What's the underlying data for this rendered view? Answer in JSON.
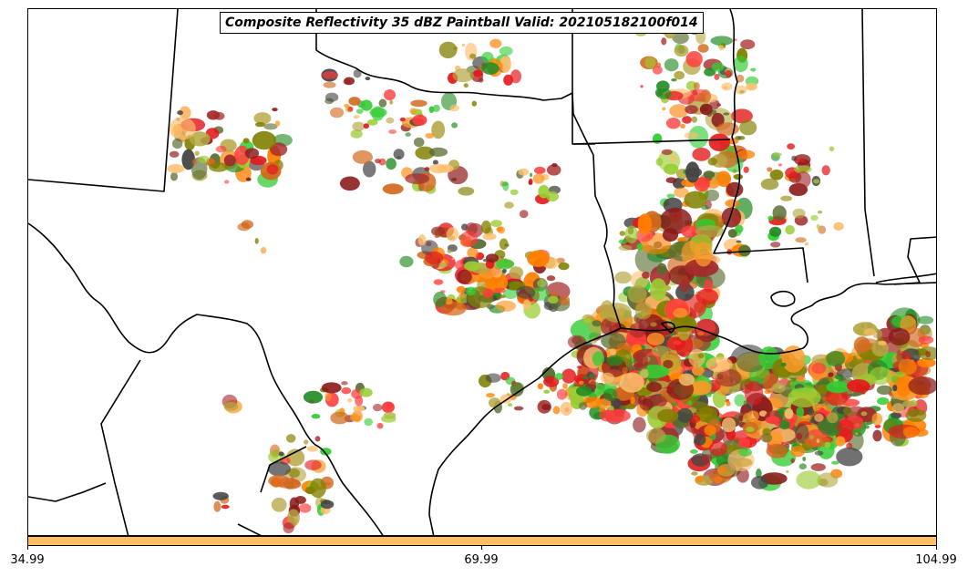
{
  "title": "Composite Reflectivity 35 dBZ Paintball Valid: 2021051821​00f014",
  "colorbar": {
    "color": "#FDBF61",
    "ticks": [
      "34.99",
      "69.99",
      "104.99"
    ]
  },
  "colors": {
    "border": "#000000",
    "paintball_palette": [
      "#FF3B3B",
      "#E31A1C",
      "#FF7F00",
      "#FB9A29",
      "#FDBF6F",
      "#33CC33",
      "#228B22",
      "#556B2F",
      "#9ACD32",
      "#B5A642",
      "#8B1A1A",
      "#A52A2A",
      "#444444",
      "#808000",
      "#D2691E"
    ]
  }
}
